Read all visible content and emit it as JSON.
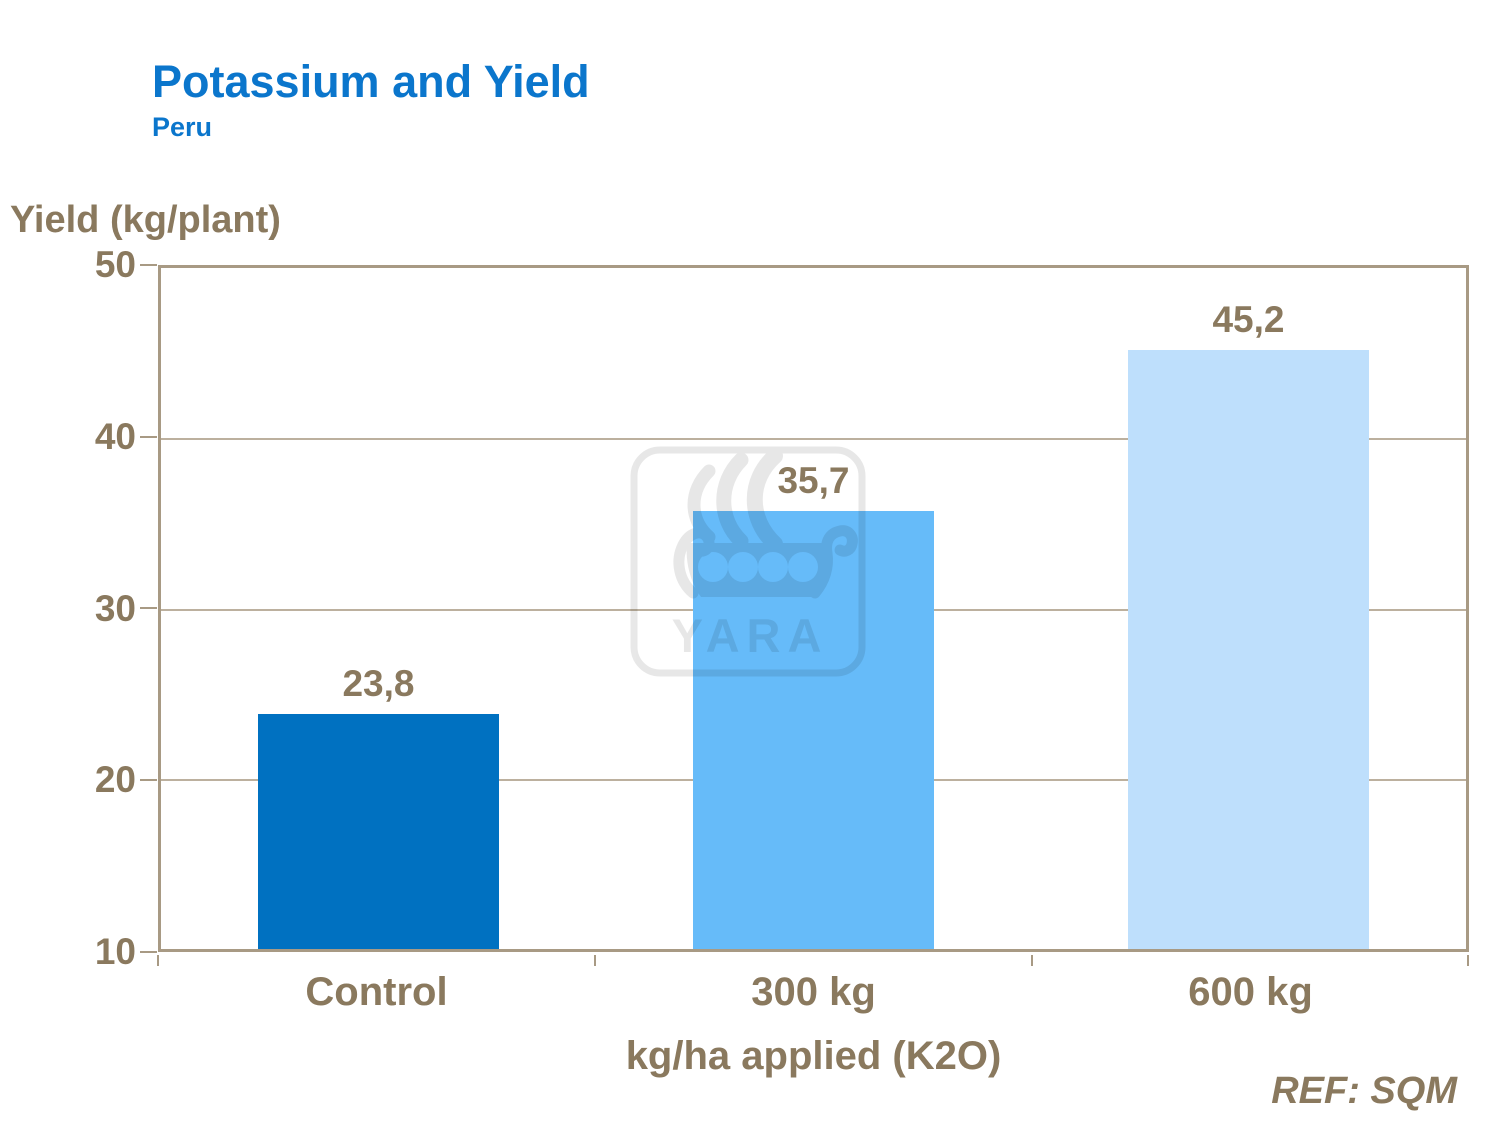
{
  "slide": {
    "title": "Potassium and Yield",
    "subtitle": "Peru",
    "reference": "REF: SQM",
    "watermark": "YARA"
  },
  "chart_data": {
    "type": "bar",
    "title": "Potassium and Yield",
    "subtitle": "Peru",
    "categories": [
      "Control",
      "300 kg",
      "600 kg"
    ],
    "values": [
      23.8,
      35.7,
      45.2
    ],
    "value_labels": [
      "23,8",
      "35,7",
      "45,2"
    ],
    "xlabel": "kg/ha applied (K2O)",
    "ylabel": "Yield (kg/plant)",
    "ylim": [
      10,
      50
    ],
    "y_ticks": [
      "50",
      "40",
      "30",
      "20",
      "10"
    ],
    "grid": "horizontal",
    "legend": "none",
    "bar_colors": [
      "#0071c1",
      "#66bbf9",
      "#bedffc"
    ],
    "colors": {
      "title": "#0b76cc",
      "text": "#8a795e",
      "axis": "#a89a84",
      "gridline": "#bcb09e"
    }
  }
}
